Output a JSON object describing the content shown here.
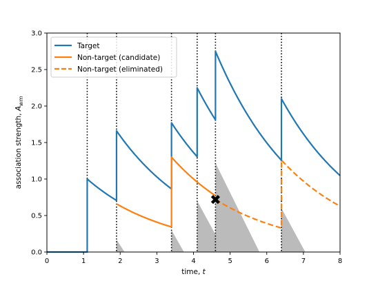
{
  "chart_data": {
    "type": "line",
    "xlabel": "time, t",
    "ylabel": "association strength, A_wm",
    "xlim": [
      0,
      8
    ],
    "ylim": [
      0,
      3
    ],
    "xticks": [
      "0",
      "1",
      "2",
      "3",
      "4",
      "5",
      "6",
      "7",
      "8"
    ],
    "yticks": [
      "0.0",
      "0.5",
      "1.0",
      "1.5",
      "2.0",
      "2.5",
      "3.0"
    ],
    "grid": false,
    "legend_placement": "top-left",
    "tau": 2.3,
    "events": [
      1.1,
      1.9,
      3.4,
      4.1,
      4.6,
      6.4
    ],
    "series": [
      {
        "name": "Target",
        "color": "#1f77b4",
        "dash": "solid",
        "segments": [
          {
            "x0": 0,
            "x1": 1.1,
            "v0": 0,
            "decay": false
          },
          {
            "x0": 1.1,
            "x1": 1.9,
            "v0": 1.0,
            "decay": true
          },
          {
            "x0": 1.9,
            "x1": 3.4,
            "v0": 1.66,
            "decay": true
          },
          {
            "x0": 3.4,
            "x1": 4.1,
            "v0": 1.77,
            "decay": true
          },
          {
            "x0": 4.1,
            "x1": 4.6,
            "v0": 2.25,
            "decay": true
          },
          {
            "x0": 4.6,
            "x1": 6.4,
            "v0": 2.75,
            "decay": true
          },
          {
            "x0": 6.4,
            "x1": 8.0,
            "v0": 2.1,
            "decay": true
          }
        ]
      },
      {
        "name": "Non-target (candidate)",
        "color": "#ff7f0e",
        "dash": "solid",
        "segments": [
          {
            "x0": 1.9,
            "x1": 3.4,
            "v0": 0.66,
            "decay": true
          },
          {
            "x0": 3.4,
            "x1": 4.6,
            "v0": 1.3,
            "decay": true
          }
        ]
      },
      {
        "name": "Non-target (eliminated)",
        "color": "#ff7f0e",
        "dash": "dashed",
        "segments": [
          {
            "x0": 4.6,
            "x1": 6.4,
            "v0": 0.72,
            "decay": true
          },
          {
            "x0": 6.4,
            "x1": 8.0,
            "v0": 1.26,
            "decay": true
          }
        ]
      }
    ],
    "shaded_regions": [
      {
        "x0": 1.9,
        "peak": 0.17,
        "width": 0.22
      },
      {
        "x0": 3.4,
        "peak": 0.3,
        "width": 0.34
      },
      {
        "x0": 4.1,
        "peak": 0.7,
        "width": 0.76
      },
      {
        "x0": 4.6,
        "peak": 1.22,
        "width": 1.2
      },
      {
        "x0": 6.4,
        "peak": 0.6,
        "width": 0.65
      }
    ],
    "marker": {
      "x": 4.6,
      "y": 0.72,
      "symbol": "X"
    }
  }
}
